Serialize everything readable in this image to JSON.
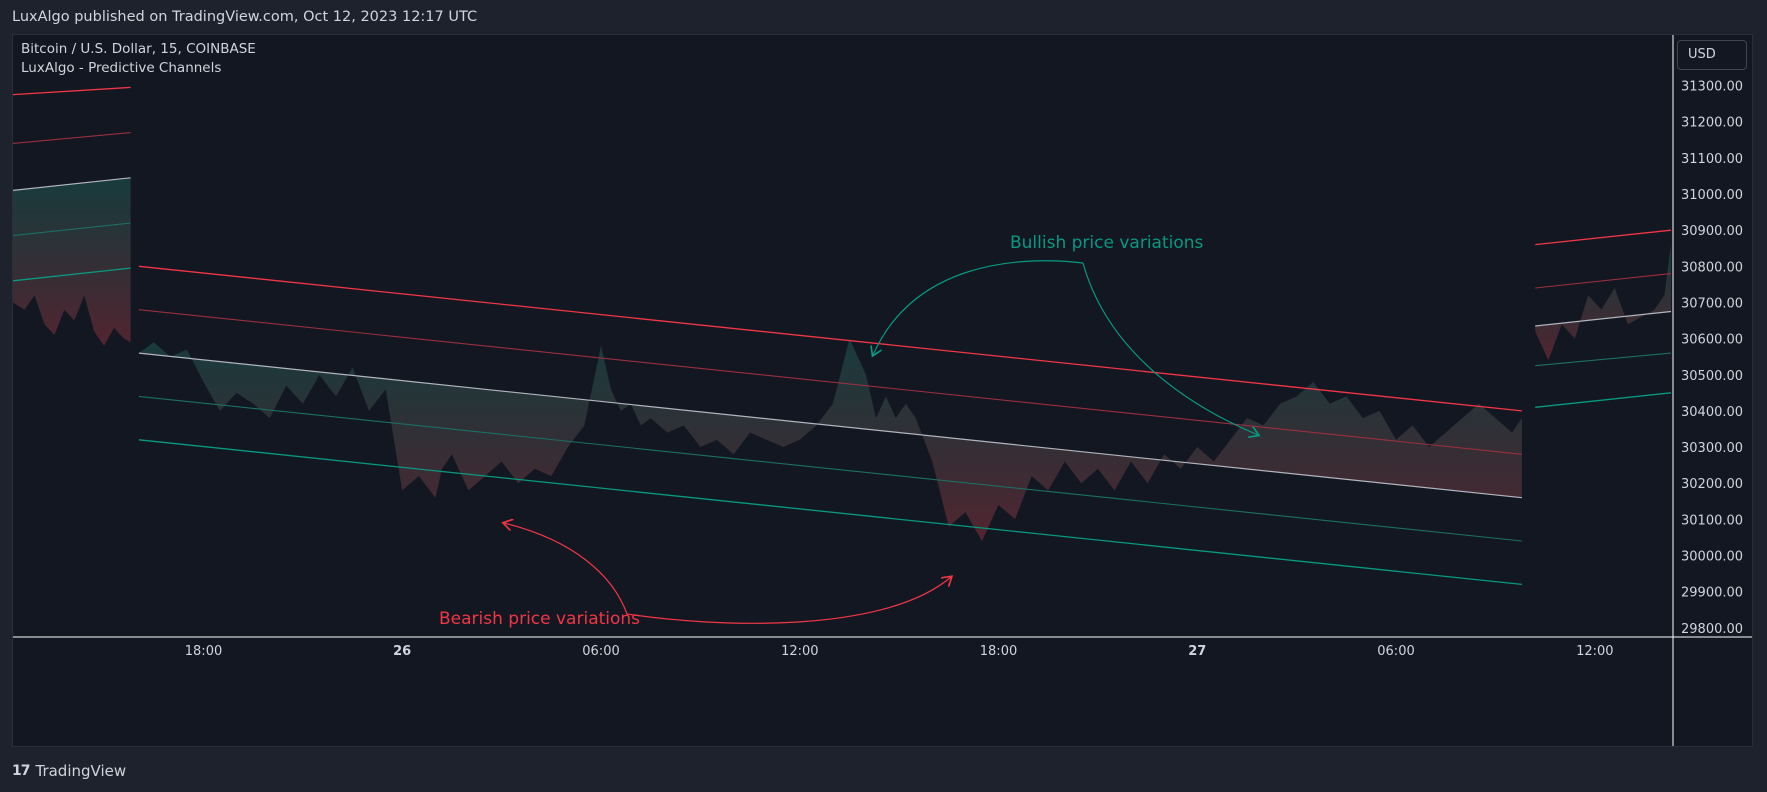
{
  "header": {
    "published_text": "LuxAlgo published on TradingView.com, Oct 12, 2023 12:17 UTC"
  },
  "legend": {
    "symbol_line": "Bitcoin / U.S. Dollar, 15, COINBASE",
    "indicator_line": "LuxAlgo - Predictive Channels"
  },
  "price_scale": {
    "currency": "USD"
  },
  "footer": {
    "brand": "TradingView",
    "logo_glyph": "17"
  },
  "annotations": {
    "bullish": "Bullish price variations",
    "bearish": "Bearish price variations"
  },
  "colors": {
    "background": "#131722",
    "resistance": "#f23645",
    "resistance_mid": "#9b2f3d",
    "average": "#b2b5be",
    "support_mid": "#1b6f64",
    "support": "#089981",
    "bullish_text": "#089981",
    "bearish_text": "#f23645"
  },
  "chart_data": {
    "type": "line",
    "title": "Bitcoin / U.S. Dollar, 15, COINBASE",
    "x_ticks": [
      {
        "label": "18:00",
        "bold": false
      },
      {
        "label": "26",
        "bold": true
      },
      {
        "label": "06:00",
        "bold": false
      },
      {
        "label": "12:00",
        "bold": false
      },
      {
        "label": "18:00",
        "bold": false
      },
      {
        "label": "27",
        "bold": true
      },
      {
        "label": "06:00",
        "bold": false
      },
      {
        "label": "12:00",
        "bold": false
      }
    ],
    "x_tick_hours": [
      18,
      24,
      30,
      36,
      42,
      48,
      54,
      60
    ],
    "y_ticks": [
      31300,
      31200,
      31100,
      31000,
      30900,
      30800,
      30700,
      30600,
      30500,
      30400,
      30300,
      30200,
      30100,
      30000,
      29900,
      29800
    ],
    "y_tick_labels": [
      "31300.00",
      "31200.00",
      "31100.00",
      "31000.00",
      "30900.00",
      "30800.00",
      "30700.00",
      "30600.00",
      "30500.00",
      "30400.00",
      "30300.00",
      "30200.00",
      "30100.00",
      "30000.00",
      "29900.00",
      "29800.00"
    ],
    "ylim": [
      29780,
      31440
    ],
    "xlim_hours": [
      12.25,
      62.3
    ],
    "channels": [
      {
        "segment": "left",
        "x_hours": [
          12.25,
          15.8
        ],
        "resistance": [
          31275,
          31295
        ],
        "resistance_mid": [
          31140,
          31170
        ],
        "average": [
          31010,
          31045
        ],
        "support_mid": [
          30885,
          30920
        ],
        "support": [
          30760,
          30795
        ]
      },
      {
        "segment": "middle",
        "x_hours": [
          16.05,
          57.8
        ],
        "resistance": [
          30800,
          30400
        ],
        "resistance_mid": [
          30680,
          30280
        ],
        "average": [
          30560,
          30160
        ],
        "support_mid": [
          30440,
          30040
        ],
        "support": [
          30320,
          29920
        ]
      },
      {
        "segment": "right",
        "x_hours": [
          58.2,
          62.3
        ],
        "resistance": [
          30860,
          30900
        ],
        "resistance_mid": [
          30740,
          30780
        ],
        "average": [
          30635,
          30675
        ],
        "support_mid": [
          30525,
          30560
        ],
        "support": [
          30410,
          30450
        ]
      }
    ],
    "price_series": {
      "segments": [
        {
          "x_hours": [
            12.25,
            12.6,
            12.9,
            13.2,
            13.5,
            13.8,
            14.1,
            14.4,
            14.7,
            15.0,
            15.3,
            15.6,
            15.8
          ],
          "close": [
            30700,
            30680,
            30720,
            30640,
            30610,
            30680,
            30650,
            30720,
            30620,
            30580,
            30630,
            30600,
            30590
          ]
        },
        {
          "x_hours": [
            16.05,
            16.5,
            17.0,
            17.5,
            18.0,
            18.5,
            19.0,
            19.5,
            20.0,
            20.5,
            21.0,
            21.5,
            22.0,
            22.5,
            23.0,
            23.5,
            24.0,
            24.5,
            25.0,
            25.2,
            25.5,
            26.0,
            26.5,
            27.0,
            27.5,
            28.0,
            28.5,
            29.0,
            29.5,
            30.0,
            30.3,
            30.6,
            30.9,
            31.2,
            31.5,
            32.0,
            32.5,
            33.0,
            33.5,
            34.0,
            34.5,
            35.0,
            35.5,
            36.0,
            36.5,
            37.0,
            37.5,
            38.0,
            38.3,
            38.6,
            38.9,
            39.2,
            39.5,
            40.0,
            40.5,
            41.0,
            41.5,
            42.0,
            42.5,
            43.0,
            43.5,
            44.0,
            44.5,
            45.0,
            45.5,
            46.0,
            46.5,
            47.0,
            47.5,
            48.0,
            48.5,
            49.0,
            49.5,
            50.0,
            50.5,
            51.0,
            51.5,
            52.0,
            52.5,
            53.0,
            53.5,
            54.0,
            54.5,
            55.0,
            55.5,
            56.0,
            56.5,
            57.0,
            57.5,
            57.8
          ],
          "close": [
            30560,
            30590,
            30550,
            30570,
            30480,
            30400,
            30450,
            30420,
            30380,
            30470,
            30420,
            30500,
            30440,
            30520,
            30400,
            30460,
            30180,
            30220,
            30160,
            30240,
            30280,
            30180,
            30220,
            30260,
            30200,
            30240,
            30220,
            30300,
            30360,
            30580,
            30460,
            30400,
            30420,
            30360,
            30380,
            30340,
            30360,
            30300,
            30320,
            30280,
            30340,
            30320,
            30300,
            30320,
            30360,
            30420,
            30600,
            30500,
            30380,
            30440,
            30380,
            30420,
            30380,
            30260,
            30080,
            30120,
            30040,
            30140,
            30100,
            30220,
            30180,
            30260,
            30200,
            30240,
            30180,
            30260,
            30200,
            30280,
            30240,
            30300,
            30260,
            30320,
            30380,
            30360,
            30420,
            30440,
            30480,
            30420,
            30440,
            30380,
            30400,
            30320,
            30360,
            30300,
            30340,
            30380,
            30420,
            30380,
            30340,
            30380
          ]
        },
        {
          "x_hours": [
            58.2,
            58.6,
            59.0,
            59.4,
            59.8,
            60.2,
            60.6,
            61.0,
            61.4,
            61.8,
            62.1,
            62.3
          ],
          "close": [
            30620,
            30540,
            30640,
            30600,
            30720,
            30680,
            30740,
            30640,
            30660,
            30680,
            30720,
            30860
          ]
        }
      ]
    }
  }
}
